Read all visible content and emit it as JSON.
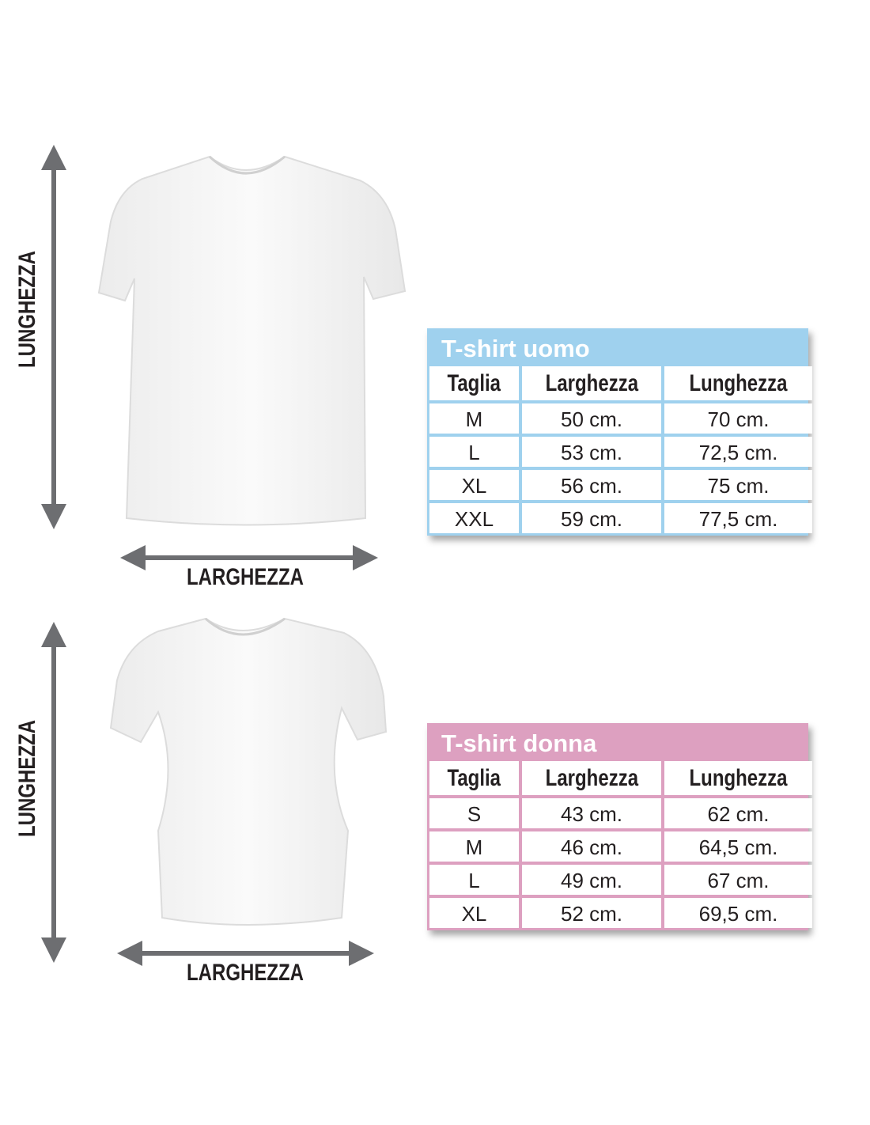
{
  "colors": {
    "men_accent": "#9fd1ee",
    "women_accent": "#dda0c0",
    "arrow": "#6d6e71"
  },
  "men": {
    "length_label": "LUNGHEZZA",
    "width_label": "LARGHEZZA",
    "table": {
      "title": "T-shirt uomo",
      "headers": [
        "Taglia",
        "Larghezza",
        "Lunghezza"
      ],
      "rows": [
        [
          "M",
          "50 cm.",
          "70 cm."
        ],
        [
          "L",
          "53 cm.",
          "72,5 cm."
        ],
        [
          "XL",
          "56 cm.",
          "75 cm."
        ],
        [
          "XXL",
          "59 cm.",
          "77,5 cm."
        ]
      ]
    }
  },
  "women": {
    "length_label": "LUNGHEZZA",
    "width_label": "LARGHEZZA",
    "table": {
      "title": "T-shirt donna",
      "headers": [
        "Taglia",
        "Larghezza",
        "Lunghezza"
      ],
      "rows": [
        [
          "S",
          "43 cm.",
          "62 cm."
        ],
        [
          "M",
          "46 cm.",
          "64,5 cm."
        ],
        [
          "L",
          "49 cm.",
          "67 cm."
        ],
        [
          "XL",
          "52 cm.",
          "69,5 cm."
        ]
      ]
    }
  }
}
